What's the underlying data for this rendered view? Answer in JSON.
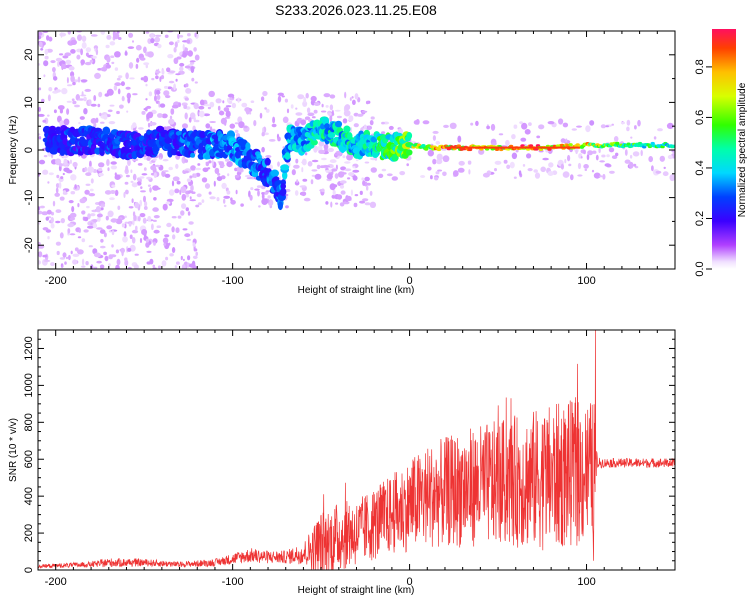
{
  "figure": {
    "title": "S233.2026.023.11.25.E08"
  },
  "chart_data": [
    {
      "type": "heatmap",
      "title": "S233.2026.023.11.25.E08",
      "xlabel": "Height of straight line (km)",
      "ylabel": "Frequency (Hz)",
      "xlim": [
        -210,
        150
      ],
      "ylim": [
        -25,
        25
      ],
      "xticks": [
        -200,
        -100,
        0,
        100
      ],
      "xtick_labels": [
        "-200",
        "-100",
        "0",
        "100"
      ],
      "yticks": [
        -20,
        -10,
        0,
        10,
        20
      ],
      "ytick_labels": [
        "-20",
        "-10",
        "0",
        "10",
        "20"
      ],
      "colorbar": {
        "label": "Normalized spectral amplitude",
        "range": [
          0,
          0.95
        ],
        "ticks": [
          0,
          0.2,
          0.4,
          0.6,
          0.8
        ],
        "tick_labels": [
          "0.0",
          "0.2",
          "0.4",
          "0.6",
          "0.8"
        ]
      },
      "ridge": {
        "x": [
          -195,
          -180,
          -160,
          -140,
          -120,
          -100,
          -90,
          -80,
          -72,
          -68,
          -60,
          -50,
          -40,
          -30,
          -20,
          -10,
          0,
          10,
          20,
          40,
          60,
          80,
          100,
          120,
          150
        ],
        "y": [
          2,
          2,
          1,
          2,
          1,
          1,
          -2,
          -5,
          -10,
          3,
          2,
          5,
          3,
          1,
          1,
          0.5,
          1,
          0.5,
          0.5,
          0.5,
          0.5,
          0.5,
          1,
          1,
          1
        ],
        "amplitude": [
          0.3,
          0.3,
          0.3,
          0.3,
          0.35,
          0.4,
          0.35,
          0.35,
          0.35,
          0.45,
          0.45,
          0.5,
          0.5,
          0.5,
          0.55,
          0.6,
          0.7,
          0.8,
          0.9,
          0.95,
          0.95,
          0.9,
          0.85,
          0.6,
          0.55
        ]
      }
    },
    {
      "type": "line",
      "xlabel": "Height of straight line (km)",
      "ylabel": "SNR (10 * v/v)",
      "xlim": [
        -210,
        150
      ],
      "ylim": [
        0,
        1300
      ],
      "xticks": [
        -200,
        -100,
        0,
        100
      ],
      "xtick_labels": [
        "-200",
        "-100",
        "0",
        "100"
      ],
      "yticks": [
        0,
        200,
        400,
        600,
        800,
        1000,
        1200
      ],
      "ytick_labels": [
        "0",
        "200",
        "400",
        "600",
        "800",
        "1000",
        "1200"
      ],
      "color": "#ee3333",
      "envelope": {
        "x": [
          -210,
          -180,
          -170,
          -150,
          -130,
          -110,
          -100,
          -90,
          -80,
          -70,
          -60,
          -50,
          -40,
          -30,
          -20,
          -10,
          0,
          10,
          20,
          30,
          40,
          50,
          60,
          70,
          80,
          90,
          100,
          103,
          105,
          106,
          110,
          120,
          130,
          140,
          150
        ],
        "base": [
          20,
          30,
          40,
          40,
          30,
          40,
          60,
          80,
          70,
          70,
          90,
          140,
          180,
          200,
          250,
          300,
          350,
          400,
          420,
          440,
          460,
          470,
          480,
          490,
          500,
          520,
          530,
          540,
          560,
          580,
          580,
          580,
          580,
          580,
          580
        ],
        "amp": [
          10,
          15,
          25,
          20,
          15,
          20,
          30,
          40,
          35,
          35,
          60,
          180,
          190,
          180,
          200,
          220,
          250,
          280,
          300,
          320,
          330,
          340,
          360,
          380,
          400,
          400,
          400,
          380,
          350,
          30,
          25,
          25,
          25,
          25,
          25
        ]
      },
      "spikes": [
        {
          "x": 105,
          "y": 1300
        },
        {
          "x": 104,
          "y": 50
        }
      ]
    }
  ]
}
